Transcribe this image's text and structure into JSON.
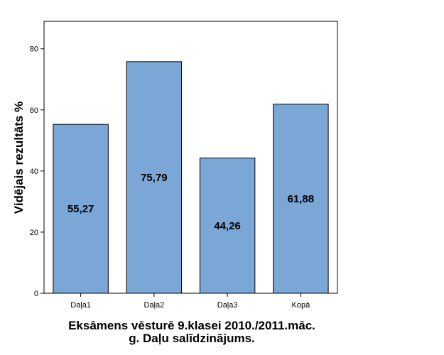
{
  "chart_data": {
    "type": "bar",
    "categories": [
      "Daļa1",
      "Daļa2",
      "Daļa3",
      "Kopā"
    ],
    "values": [
      55.27,
      75.79,
      44.26,
      61.88
    ],
    "data_labels": [
      "55,27",
      "75,79",
      "44,26",
      "61,88"
    ],
    "xlabel_lines": [
      "Eksāmens vēsturē 9.klasei 2010./2011.māc.",
      "g. Daļu salīdzinājums."
    ],
    "ylabel": "Vidējais rezultāts %",
    "ylim": [
      0,
      89
    ],
    "yticks": [
      0,
      20,
      40,
      60,
      80
    ],
    "grid": false,
    "bar_color": "#7aa7d6",
    "bar_edge_color": "#000000"
  }
}
